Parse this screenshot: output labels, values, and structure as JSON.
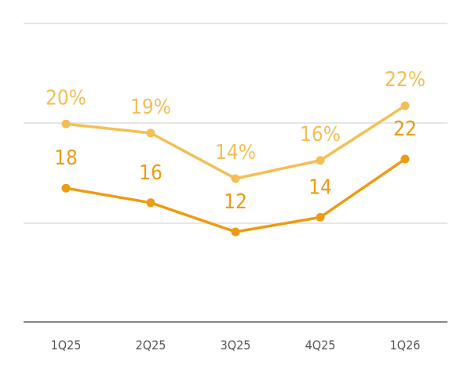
{
  "chart_data": {
    "type": "line",
    "categories": [
      "1Q25",
      "2Q25",
      "3Q25",
      "4Q25",
      "1Q26"
    ],
    "series": [
      {
        "values": [
          20,
          19,
          14,
          16,
          22
        ],
        "labels": [
          "20%",
          "19%",
          "14%",
          "16%",
          "22%"
        ],
        "color": "#F5BE54"
      },
      {
        "values": [
          18,
          16,
          12,
          14,
          22
        ],
        "labels": [
          "18",
          "16",
          "12",
          "14",
          "22"
        ],
        "color": "#EE9B11"
      }
    ],
    "title": "",
    "xlabel": "",
    "ylabel": "",
    "grid": true,
    "legend": "none"
  }
}
